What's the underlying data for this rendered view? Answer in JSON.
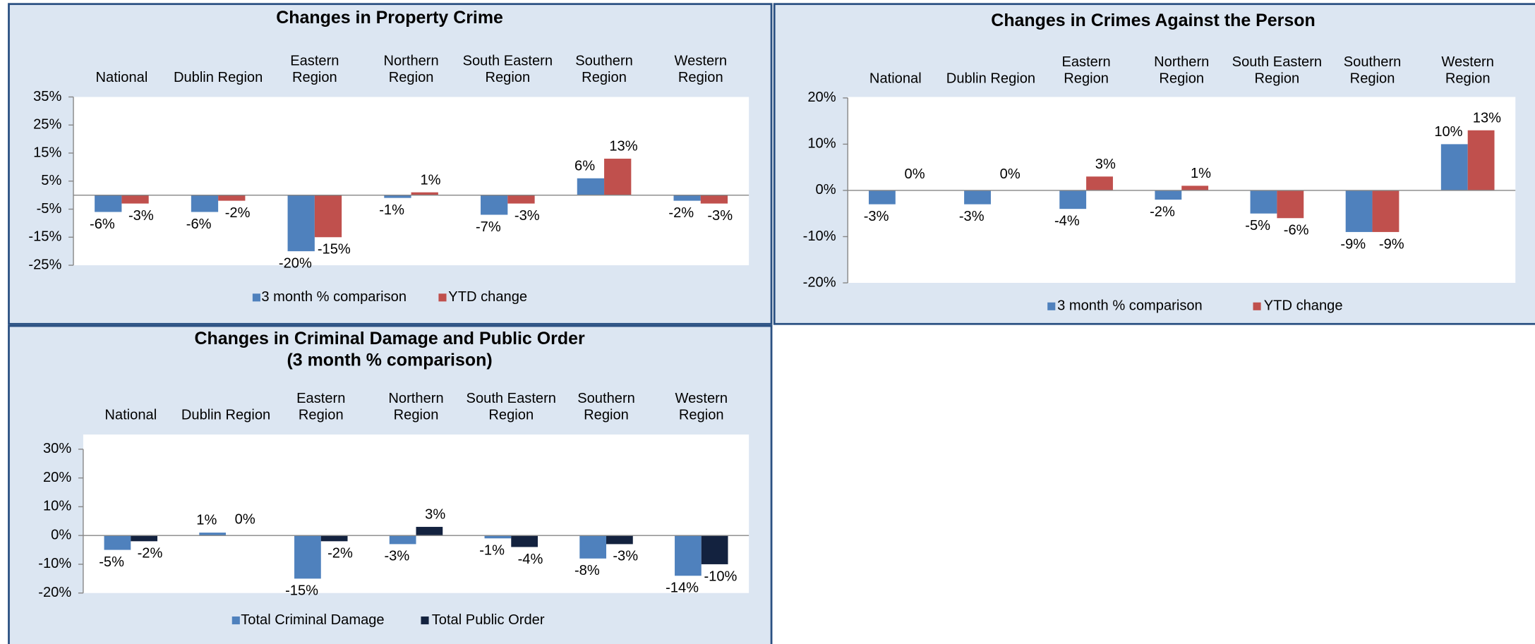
{
  "chart_data": [
    {
      "type": "bar",
      "title": "Changes in Property Crime",
      "categories": [
        "National",
        "Dublin Region",
        "Eastern Region",
        "Northern Region",
        "South Eastern Region",
        "Southern Region",
        "Western Region"
      ],
      "series": [
        {
          "name": "3 month % comparison",
          "color": "#4f81bd",
          "values": [
            -6,
            -6,
            -20,
            -1,
            -7,
            6,
            -2
          ],
          "value_labels": [
            "-6%",
            "-6%",
            "-20%",
            "-1%",
            "-7%",
            "6%",
            "-2%"
          ]
        },
        {
          "name": "YTD change",
          "color": "#c0504d",
          "values": [
            -3,
            -2,
            -15,
            1,
            -3,
            13,
            -3
          ],
          "value_labels": [
            "-3%",
            "-2%",
            "-15%",
            "1%",
            "-3%",
            "13%",
            "-3%"
          ]
        }
      ],
      "ylim": [
        -25,
        35
      ],
      "yticks": [
        {
          "value": 35,
          "label": "35%"
        },
        {
          "value": 25,
          "label": "25%"
        },
        {
          "value": 15,
          "label": "15%"
        },
        {
          "value": 5,
          "label": "5%"
        },
        {
          "value": -5,
          "label": "-5%"
        },
        {
          "value": -15,
          "label": "-15%"
        },
        {
          "value": -25,
          "label": "-25%"
        }
      ],
      "legend": "bottom"
    },
    {
      "type": "bar",
      "title": "Changes in Crimes Against the Person",
      "categories": [
        "National",
        "Dublin Region",
        "Eastern Region",
        "Northern Region",
        "South Eastern Region",
        "Southern Region",
        "Western Region"
      ],
      "series": [
        {
          "name": "3 month % comparison",
          "color": "#4f81bd",
          "values": [
            -3,
            -3,
            -4,
            -2,
            -5,
            -9,
            10
          ],
          "value_labels": [
            "-3%",
            "-3%",
            "-4%",
            "-2%",
            "-5%",
            "-9%",
            "10%"
          ]
        },
        {
          "name": "YTD change",
          "color": "#c0504d",
          "values": [
            0,
            0,
            3,
            1,
            -6,
            -9,
            13
          ],
          "value_labels": [
            "0%",
            "0%",
            "3%",
            "1%",
            "-6%",
            "-9%",
            "13%"
          ]
        }
      ],
      "ylim": [
        -20,
        20
      ],
      "yticks": [
        {
          "value": 20,
          "label": "20%"
        },
        {
          "value": 10,
          "label": "10%"
        },
        {
          "value": 0,
          "label": "0%"
        },
        {
          "value": -10,
          "label": "-10%"
        },
        {
          "value": -20,
          "label": "-20%"
        }
      ],
      "legend": "bottom"
    },
    {
      "type": "bar",
      "title": "Changes in Criminal Damage and Public Order",
      "subtitle": "(3 month % comparison)",
      "categories": [
        "National",
        "Dublin Region",
        "Eastern Region",
        "Northern Region",
        "South Eastern Region",
        "Southern Region",
        "Western Region"
      ],
      "series": [
        {
          "name": "Total Criminal Damage",
          "color": "#4f81bd",
          "values": [
            -5,
            1,
            -15,
            -3,
            -1,
            -8,
            -14
          ],
          "value_labels": [
            "-5%",
            "1%",
            "-15%",
            "-3%",
            "-1%",
            "-8%",
            "-14%"
          ]
        },
        {
          "name": "Total Public Order",
          "color": "#13223f",
          "values": [
            -2,
            0,
            -2,
            3,
            -4,
            -3,
            -10
          ],
          "value_labels": [
            "-2%",
            "0%",
            "-2%",
            "3%",
            "-4%",
            "-3%",
            "-10%"
          ]
        }
      ],
      "ylim": [
        -20,
        30
      ],
      "yticks": [
        {
          "value": 30,
          "label": "30%"
        },
        {
          "value": 20,
          "label": "20%"
        },
        {
          "value": 10,
          "label": "10%"
        },
        {
          "value": 0,
          "label": "0%"
        },
        {
          "value": -10,
          "label": "-10%"
        },
        {
          "value": -20,
          "label": "-20%"
        }
      ],
      "legend": "bottom"
    }
  ]
}
